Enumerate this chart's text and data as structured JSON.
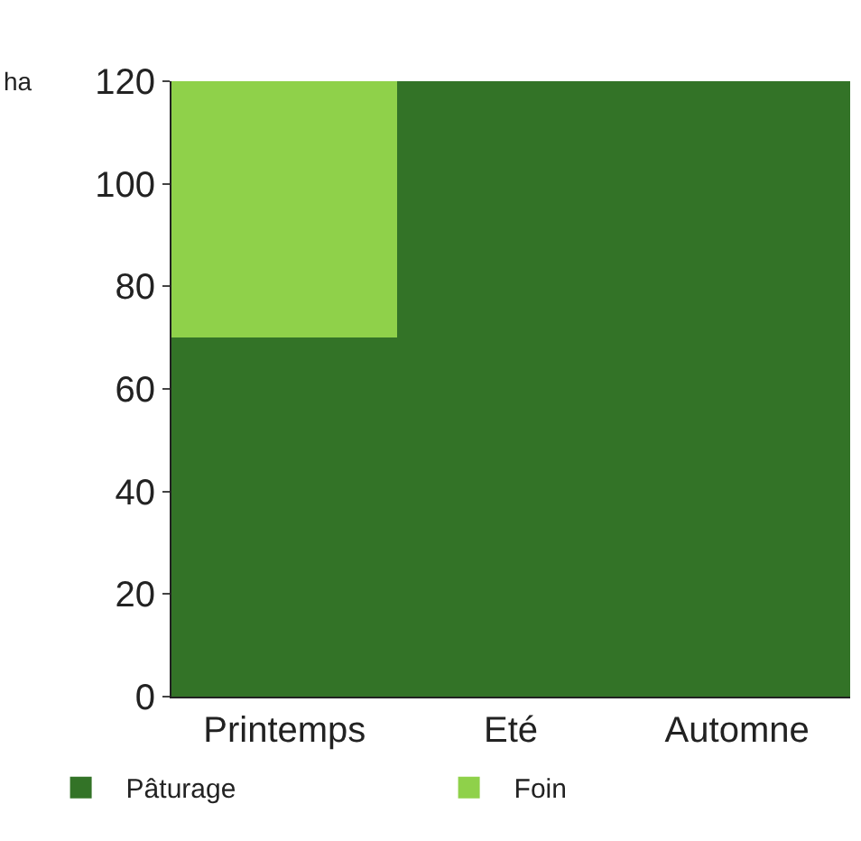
{
  "chart_data": {
    "type": "bar",
    "stacked": true,
    "ylabel": "ha",
    "categories": [
      "Printemps",
      "Eté",
      "Automne"
    ],
    "series": [
      {
        "name": "Pâturage",
        "color": "#337327",
        "values": [
          70,
          120,
          120
        ]
      },
      {
        "name": "Foin",
        "color": "#8fd14a",
        "values": [
          50,
          null,
          null
        ]
      }
    ],
    "ylim": [
      0,
      120
    ],
    "yticks": [
      0,
      20,
      40,
      60,
      80,
      100,
      120
    ],
    "legend": "bottom"
  }
}
